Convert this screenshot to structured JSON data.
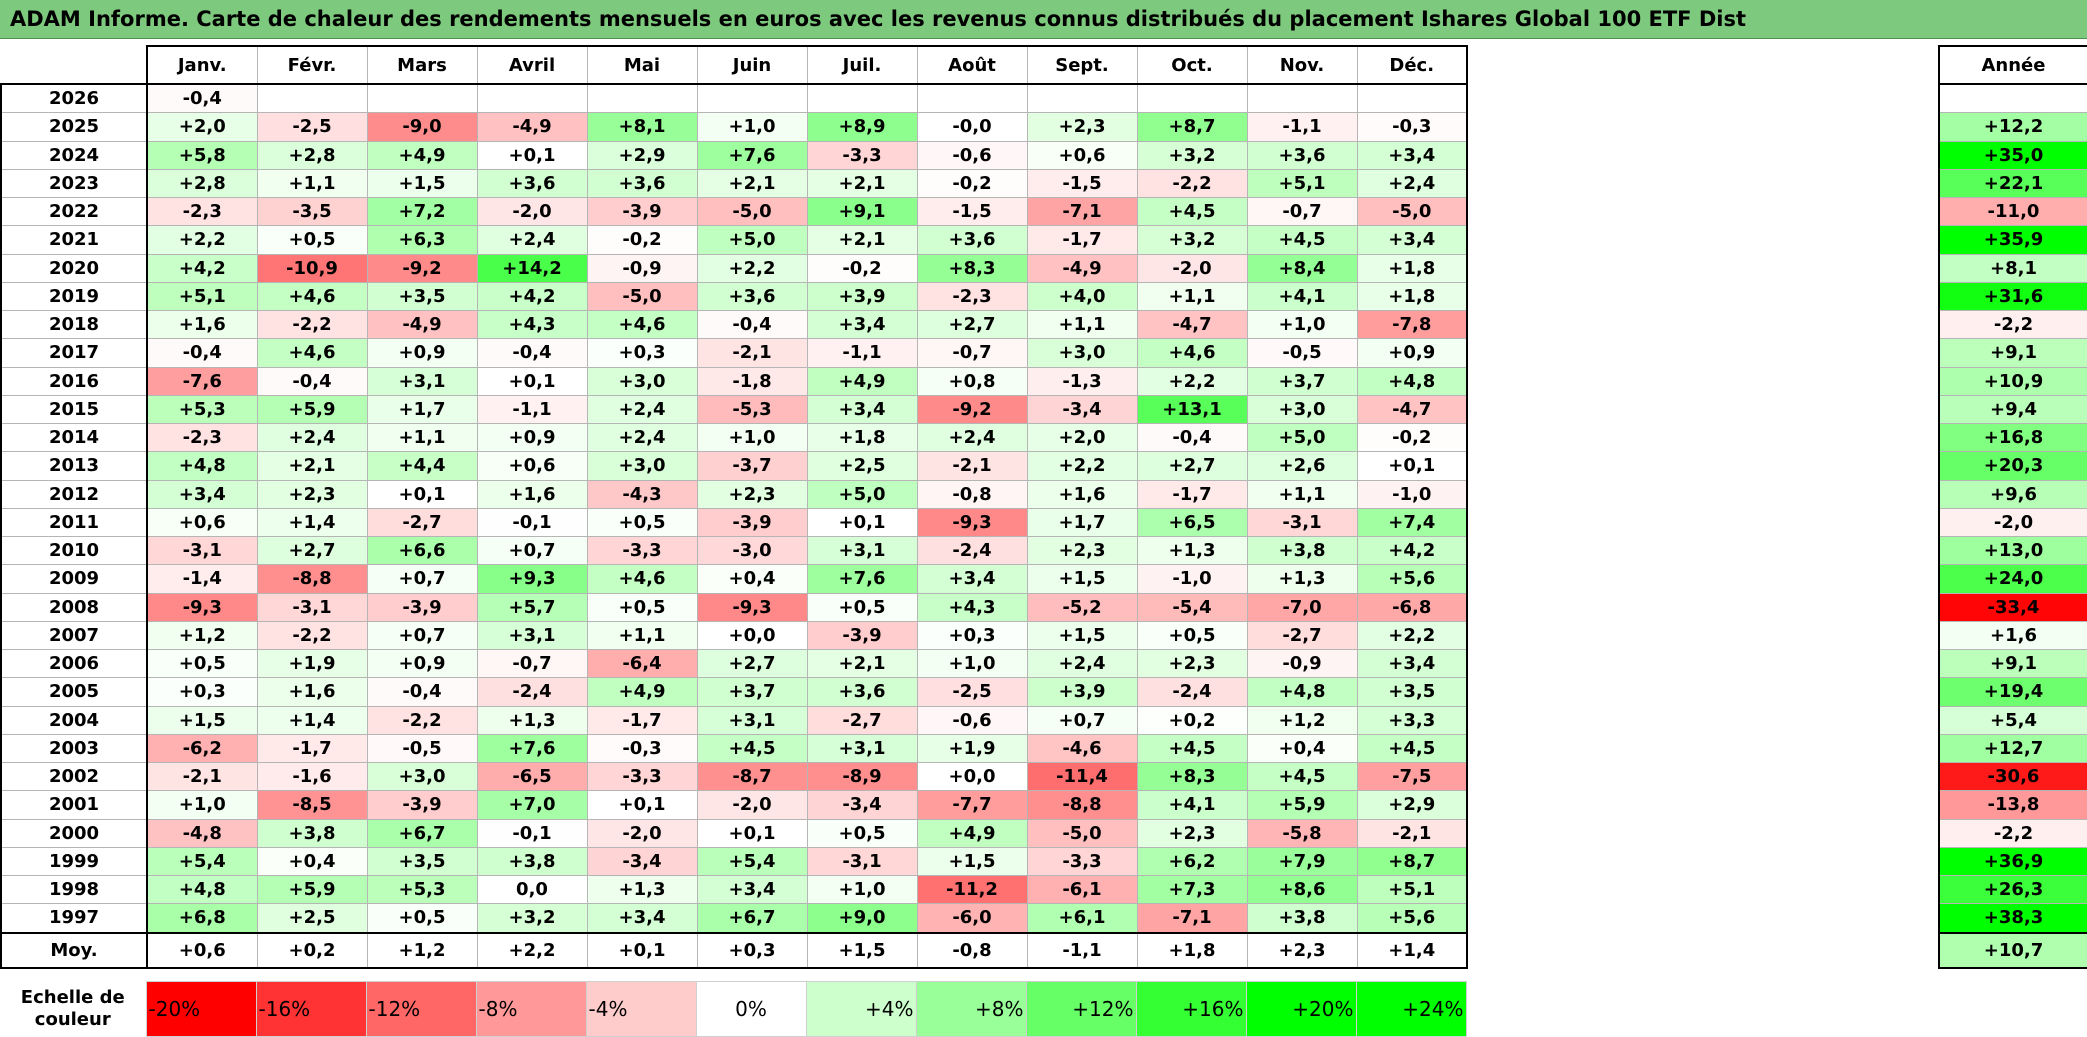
{
  "title": "ADAM Informe. Carte de chaleur des rendements mensuels en euros avec les revenus connus distribués du placement Ishares Global 100 ETF Dist",
  "chart_data": {
    "type": "heatmap",
    "months": [
      "Janv.",
      "Févr.",
      "Mars",
      "Avril",
      "Mai",
      "Juin",
      "Juil.",
      "Août",
      "Sept.",
      "Oct.",
      "Nov.",
      "Déc."
    ],
    "annual_header": "Année",
    "rows": [
      {
        "year": "2026",
        "values": [
          "-0,4",
          "",
          "",
          "",
          "",
          "",
          "",
          "",
          "",
          "",
          "",
          ""
        ],
        "annual": ""
      },
      {
        "year": "2025",
        "values": [
          "+2,0",
          "-2,5",
          "-9,0",
          "-4,9",
          "+8,1",
          "+1,0",
          "+8,9",
          "-0,0",
          "+2,3",
          "+8,7",
          "-1,1",
          "-0,3"
        ],
        "annual": "+12,2"
      },
      {
        "year": "2024",
        "values": [
          "+5,8",
          "+2,8",
          "+4,9",
          "+0,1",
          "+2,9",
          "+7,6",
          "-3,3",
          "-0,6",
          "+0,6",
          "+3,2",
          "+3,6",
          "+3,4"
        ],
        "annual": "+35,0"
      },
      {
        "year": "2023",
        "values": [
          "+2,8",
          "+1,1",
          "+1,5",
          "+3,6",
          "+3,6",
          "+2,1",
          "+2,1",
          "-0,2",
          "-1,5",
          "-2,2",
          "+5,1",
          "+2,4"
        ],
        "annual": "+22,1"
      },
      {
        "year": "2022",
        "values": [
          "-2,3",
          "-3,5",
          "+7,2",
          "-2,0",
          "-3,9",
          "-5,0",
          "+9,1",
          "-1,5",
          "-7,1",
          "+4,5",
          "-0,7",
          "-5,0"
        ],
        "annual": "-11,0"
      },
      {
        "year": "2021",
        "values": [
          "+2,2",
          "+0,5",
          "+6,3",
          "+2,4",
          "-0,2",
          "+5,0",
          "+2,1",
          "+3,6",
          "-1,7",
          "+3,2",
          "+4,5",
          "+3,4"
        ],
        "annual": "+35,9"
      },
      {
        "year": "2020",
        "values": [
          "+4,2",
          "-10,9",
          "-9,2",
          "+14,2",
          "-0,9",
          "+2,2",
          "-0,2",
          "+8,3",
          "-4,9",
          "-2,0",
          "+8,4",
          "+1,8"
        ],
        "annual": "+8,1"
      },
      {
        "year": "2019",
        "values": [
          "+5,1",
          "+4,6",
          "+3,5",
          "+4,2",
          "-5,0",
          "+3,6",
          "+3,9",
          "-2,3",
          "+4,0",
          "+1,1",
          "+4,1",
          "+1,8"
        ],
        "annual": "+31,6"
      },
      {
        "year": "2018",
        "values": [
          "+1,6",
          "-2,2",
          "-4,9",
          "+4,3",
          "+4,6",
          "-0,4",
          "+3,4",
          "+2,7",
          "+1,1",
          "-4,7",
          "+1,0",
          "-7,8"
        ],
        "annual": "-2,2"
      },
      {
        "year": "2017",
        "values": [
          "-0,4",
          "+4,6",
          "+0,9",
          "-0,4",
          "+0,3",
          "-2,1",
          "-1,1",
          "-0,7",
          "+3,0",
          "+4,6",
          "-0,5",
          "+0,9"
        ],
        "annual": "+9,1"
      },
      {
        "year": "2016",
        "values": [
          "-7,6",
          "-0,4",
          "+3,1",
          "+0,1",
          "+3,0",
          "-1,8",
          "+4,9",
          "+0,8",
          "-1,3",
          "+2,2",
          "+3,7",
          "+4,8"
        ],
        "annual": "+10,9"
      },
      {
        "year": "2015",
        "values": [
          "+5,3",
          "+5,9",
          "+1,7",
          "-1,1",
          "+2,4",
          "-5,3",
          "+3,4",
          "-9,2",
          "-3,4",
          "+13,1",
          "+3,0",
          "-4,7"
        ],
        "annual": "+9,4"
      },
      {
        "year": "2014",
        "values": [
          "-2,3",
          "+2,4",
          "+1,1",
          "+0,9",
          "+2,4",
          "+1,0",
          "+1,8",
          "+2,4",
          "+2,0",
          "-0,4",
          "+5,0",
          "-0,2"
        ],
        "annual": "+16,8"
      },
      {
        "year": "2013",
        "values": [
          "+4,8",
          "+2,1",
          "+4,4",
          "+0,6",
          "+3,0",
          "-3,7",
          "+2,5",
          "-2,1",
          "+2,2",
          "+2,7",
          "+2,6",
          "+0,1"
        ],
        "annual": "+20,3"
      },
      {
        "year": "2012",
        "values": [
          "+3,4",
          "+2,3",
          "+0,1",
          "+1,6",
          "-4,3",
          "+2,3",
          "+5,0",
          "-0,8",
          "+1,6",
          "-1,7",
          "+1,1",
          "-1,0"
        ],
        "annual": "+9,6"
      },
      {
        "year": "2011",
        "values": [
          "+0,6",
          "+1,4",
          "-2,7",
          "-0,1",
          "+0,5",
          "-3,9",
          "+0,1",
          "-9,3",
          "+1,7",
          "+6,5",
          "-3,1",
          "+7,4"
        ],
        "annual": "-2,0"
      },
      {
        "year": "2010",
        "values": [
          "-3,1",
          "+2,7",
          "+6,6",
          "+0,7",
          "-3,3",
          "-3,0",
          "+3,1",
          "-2,4",
          "+2,3",
          "+1,3",
          "+3,8",
          "+4,2"
        ],
        "annual": "+13,0"
      },
      {
        "year": "2009",
        "values": [
          "-1,4",
          "-8,8",
          "+0,7",
          "+9,3",
          "+4,6",
          "+0,4",
          "+7,6",
          "+3,4",
          "+1,5",
          "-1,0",
          "+1,3",
          "+5,6"
        ],
        "annual": "+24,0"
      },
      {
        "year": "2008",
        "values": [
          "-9,3",
          "-3,1",
          "-3,9",
          "+5,7",
          "+0,5",
          "-9,3",
          "+0,5",
          "+4,3",
          "-5,2",
          "-5,4",
          "-7,0",
          "-6,8"
        ],
        "annual": "-33,4"
      },
      {
        "year": "2007",
        "values": [
          "+1,2",
          "-2,2",
          "+0,7",
          "+3,1",
          "+1,1",
          "+0,0",
          "-3,9",
          "+0,3",
          "+1,5",
          "+0,5",
          "-2,7",
          "+2,2"
        ],
        "annual": "+1,6"
      },
      {
        "year": "2006",
        "values": [
          "+0,5",
          "+1,9",
          "+0,9",
          "-0,7",
          "-6,4",
          "+2,7",
          "+2,1",
          "+1,0",
          "+2,4",
          "+2,3",
          "-0,9",
          "+3,4"
        ],
        "annual": "+9,1"
      },
      {
        "year": "2005",
        "values": [
          "+0,3",
          "+1,6",
          "-0,4",
          "-2,4",
          "+4,9",
          "+3,7",
          "+3,6",
          "-2,5",
          "+3,9",
          "-2,4",
          "+4,8",
          "+3,5"
        ],
        "annual": "+19,4"
      },
      {
        "year": "2004",
        "values": [
          "+1,5",
          "+1,4",
          "-2,2",
          "+1,3",
          "-1,7",
          "+3,1",
          "-2,7",
          "-0,6",
          "+0,7",
          "+0,2",
          "+1,2",
          "+3,3"
        ],
        "annual": "+5,4"
      },
      {
        "year": "2003",
        "values": [
          "-6,2",
          "-1,7",
          "-0,5",
          "+7,6",
          "-0,3",
          "+4,5",
          "+3,1",
          "+1,9",
          "-4,6",
          "+4,5",
          "+0,4",
          "+4,5"
        ],
        "annual": "+12,7"
      },
      {
        "year": "2002",
        "values": [
          "-2,1",
          "-1,6",
          "+3,0",
          "-6,5",
          "-3,3",
          "-8,7",
          "-8,9",
          "+0,0",
          "-11,4",
          "+8,3",
          "+4,5",
          "-7,5"
        ],
        "annual": "-30,6"
      },
      {
        "year": "2001",
        "values": [
          "+1,0",
          "-8,5",
          "-3,9",
          "+7,0",
          "+0,1",
          "-2,0",
          "-3,4",
          "-7,7",
          "-8,8",
          "+4,1",
          "+5,9",
          "+2,9"
        ],
        "annual": "-13,8"
      },
      {
        "year": "2000",
        "values": [
          "-4,8",
          "+3,8",
          "+6,7",
          "-0,1",
          "-2,0",
          "+0,1",
          "+0,5",
          "+4,9",
          "-5,0",
          "+2,3",
          "-5,8",
          "-2,1"
        ],
        "annual": "-2,2"
      },
      {
        "year": "1999",
        "values": [
          "+5,4",
          "+0,4",
          "+3,5",
          "+3,8",
          "-3,4",
          "+5,4",
          "-3,1",
          "+1,5",
          "-3,3",
          "+6,2",
          "+7,9",
          "+8,7"
        ],
        "annual": "+36,9"
      },
      {
        "year": "1998",
        "values": [
          "+4,8",
          "+5,9",
          "+5,3",
          "0,0",
          "+1,3",
          "+3,4",
          "+1,0",
          "-11,2",
          "-6,1",
          "+7,3",
          "+8,6",
          "+5,1"
        ],
        "annual": "+26,3"
      },
      {
        "year": "1997",
        "values": [
          "+6,8",
          "+2,5",
          "+0,5",
          "+3,2",
          "+3,4",
          "+6,7",
          "+9,0",
          "-6,0",
          "+6,1",
          "-7,1",
          "+3,8",
          "+5,6"
        ],
        "annual": "+38,3"
      }
    ],
    "average": {
      "label": "Moy.",
      "values": [
        "+0,6",
        "+0,2",
        "+1,2",
        "+2,2",
        "+0,1",
        "+0,3",
        "+1,5",
        "-0,8",
        "-1,1",
        "+1,8",
        "+2,3",
        "+1,4"
      ],
      "annual": "+10,7"
    },
    "scale": {
      "label": "Echelle de couleur",
      "steps": [
        "-20%",
        "-16%",
        "-12%",
        "-8%",
        "-4%",
        "0%",
        "+4%",
        "+8%",
        "+12%",
        "+16%",
        "+20%",
        "+24%"
      ],
      "step_values": [
        -20,
        -16,
        -12,
        -8,
        -4,
        0,
        4,
        8,
        12,
        16,
        20,
        24
      ]
    },
    "colors": {
      "negative_max": "#ff0000",
      "neutral": "#ffffff",
      "positive_max": "#00ff00"
    }
  }
}
